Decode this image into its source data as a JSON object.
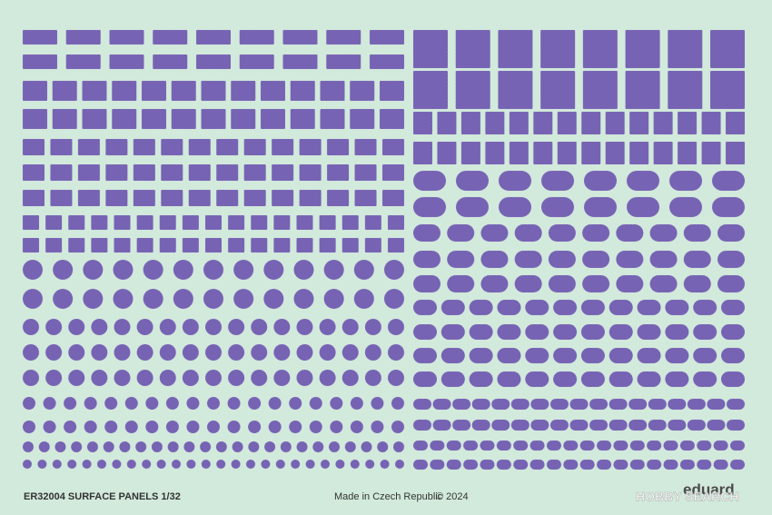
{
  "sheet": {
    "code_title": "ER32004 SURFACE PANELS 1/32",
    "origin": "Made in Czech Republic",
    "copyright": "© 2024",
    "brand": "eduard",
    "watermark": "HOBBY SEARCH"
  }
}
